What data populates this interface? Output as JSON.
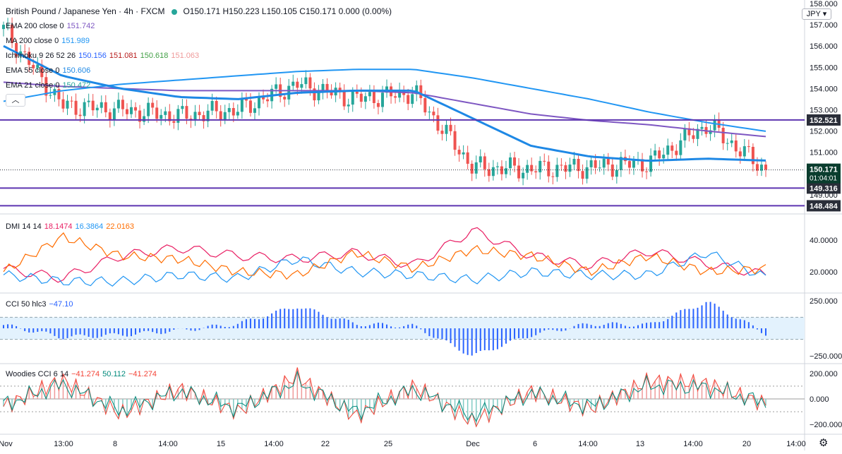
{
  "header": {
    "symbol": "British Pound / Japanese Yen · 4h · FXCM",
    "ohlc": "O150.171 H150.223 L150.105 C150.171 0.000 (0.00%)"
  },
  "currency": "JPY",
  "indicators": {
    "ema200": {
      "label": "EMA 200 close 0",
      "value": "151.742",
      "color": "#7e57c2"
    },
    "ma200": {
      "label": "MA 200 close 0",
      "value": "151.989",
      "color": "#2196f3"
    },
    "ichimoku": {
      "label": "Ichimoku 9 26 52 26",
      "v1": "150.156",
      "v2": "151.081",
      "v3": "150.618",
      "v4": "151.063",
      "c1": "#2962ff",
      "c2": "#b71c1c",
      "c3": "#43a047",
      "c4": "#ef9a9a"
    },
    "ema55": {
      "label": "EMA 55 close 0",
      "value": "150.606",
      "color": "#1e88e5"
    },
    "ema21": {
      "label": "EMA 21 close 0",
      "value": "150.472",
      "color": "#26a69a"
    }
  },
  "price_axis": {
    "ticks": [
      "158.000",
      "157.000",
      "156.000",
      "155.000",
      "154.000",
      "153.000",
      "152.000",
      "151.000",
      "149.000"
    ],
    "tags": {
      "res1": "152.521",
      "last": "150.171",
      "countdown": "01:04:01",
      "sup1": "149.316",
      "sup2": "148.484"
    }
  },
  "dmi": {
    "label": "DMI 14 14",
    "v1": "18.1474",
    "v2": "16.3864",
    "v3": "22.0163",
    "c1": "#e91e63",
    "c2": "#2196f3",
    "c3": "#ff6d00",
    "ticks": [
      "40.0000",
      "20.0000"
    ]
  },
  "cci": {
    "label": "CCI 50 hlc3",
    "value": "−47.10",
    "color": "#2962ff",
    "ticks": [
      "250.000",
      "−250.000"
    ]
  },
  "woodies": {
    "label": "Woodies CCI 6 14",
    "v1": "−41.274",
    "v2": "50.112",
    "v3": "−41.274",
    "c1": "#f44336",
    "c2": "#00897b",
    "ticks": [
      "200.000",
      "0.000",
      "−200.000"
    ]
  },
  "time_axis": [
    "Nov",
    "13:00",
    "8",
    "14:00",
    "15",
    "14:00",
    "22",
    "25",
    "Dec",
    "6",
    "14:00",
    "13",
    "14:00",
    "20",
    "14:00"
  ],
  "chart_data": [
    {
      "type": "line",
      "title": "British Pound / Japanese Yen · 4h · FXCM",
      "x": [
        "Nov",
        "13:00",
        "8",
        "14:00",
        "15",
        "14:00",
        "22",
        "25",
        "Dec",
        "6",
        "14:00",
        "13",
        "14:00",
        "20"
      ],
      "series": [
        {
          "name": "Close",
          "values": [
            156.8,
            153.2,
            153.0,
            152.7,
            153.0,
            154.2,
            153.5,
            153.8,
            150.3,
            150.2,
            150.3,
            150.5,
            152.3,
            150.17
          ]
        },
        {
          "name": "EMA 200 close 0",
          "values": [
            154.3,
            154.1,
            154.0,
            153.9,
            153.9,
            153.9,
            153.9,
            153.8,
            153.3,
            152.8,
            152.5,
            152.3,
            152.0,
            151.74
          ]
        },
        {
          "name": "MA 200 close 0",
          "values": [
            153.4,
            153.9,
            154.2,
            154.4,
            154.6,
            154.8,
            154.9,
            154.9,
            154.5,
            154.0,
            153.5,
            152.9,
            152.4,
            151.99
          ]
        },
        {
          "name": "EMA 55 close 0",
          "values": [
            156.0,
            154.6,
            154.0,
            153.6,
            153.5,
            153.8,
            153.9,
            153.9,
            152.6,
            151.3,
            150.8,
            150.6,
            150.7,
            150.61
          ]
        }
      ],
      "ylim": [
        148.4,
        158.0
      ],
      "horizontal_levels": [
        152.521,
        149.316,
        148.484
      ]
    },
    {
      "type": "line",
      "title": "DMI 14 14",
      "x": [
        "Nov",
        "13:00",
        "8",
        "14:00",
        "15",
        "14:00",
        "22",
        "25",
        "Dec",
        "6",
        "14:00",
        "13",
        "14:00",
        "20"
      ],
      "series": [
        {
          "name": "+DI",
          "values": [
            22,
            16,
            30,
            35,
            30,
            28,
            32,
            24,
            46,
            30,
            24,
            33,
            25,
            18.15
          ]
        },
        {
          "name": "-DI",
          "values": [
            18,
            14,
            14,
            18,
            16,
            28,
            20,
            18,
            15,
            20,
            18,
            18,
            32,
            16.39
          ]
        },
        {
          "name": "ADX",
          "values": [
            20,
            42,
            30,
            28,
            20,
            18,
            32,
            22,
            34,
            30,
            20,
            30,
            20,
            22.02
          ]
        }
      ],
      "ylim": [
        8,
        55
      ]
    },
    {
      "type": "bar",
      "title": "CCI 50 hlc3",
      "x": [
        "Nov",
        "13:00",
        "8",
        "14:00",
        "15",
        "14:00",
        "22",
        "25",
        "Dec",
        "6",
        "14:00",
        "13",
        "14:00",
        "20"
      ],
      "values": [
        30,
        -80,
        -60,
        -20,
        40,
        200,
        40,
        20,
        -250,
        -60,
        40,
        30,
        240,
        -47.1
      ],
      "ylim": [
        -300,
        300
      ]
    },
    {
      "type": "bar",
      "title": "Woodies CCI 6 14",
      "x": [
        "Nov",
        "13:00",
        "8",
        "14:00",
        "15",
        "14:00",
        "22",
        "25",
        "Dec",
        "6",
        "14:00",
        "13",
        "14:00",
        "20"
      ],
      "values": [
        -60,
        150,
        -120,
        80,
        -100,
        180,
        -140,
        100,
        -180,
        60,
        -80,
        140,
        120,
        -41.274
      ],
      "ylim": [
        -260,
        260
      ]
    }
  ]
}
